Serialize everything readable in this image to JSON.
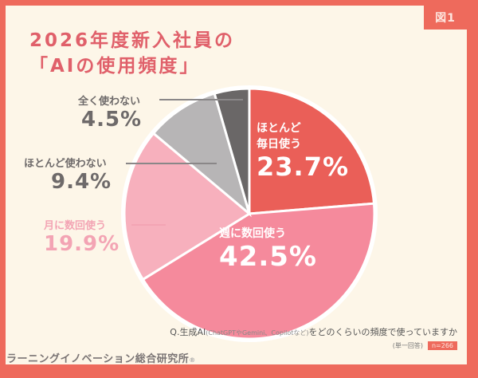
{
  "figure_badge": "図1",
  "title": {
    "line1": "2026年度新入社員の",
    "line2": "「AIの使用頻度」"
  },
  "question": {
    "prefix": "Q.生成AI",
    "note": "(ChatGPTやGemini、Copilotなど)",
    "suffix": "をどのくらいの頻度で使っていますか",
    "answer_type": "(単一回答)",
    "n": "n=266"
  },
  "footer": {
    "org": "ラーニングイノベーション総合研究所",
    "reg": "®"
  },
  "colors": {
    "frame": "#ee6a5c",
    "background": "#fdf6e8",
    "title": "#e0606a",
    "daily": "#ea5f58",
    "weekly": "#f58a9c",
    "monthly": "#f7b0bd",
    "rarely": "#b7b5b6",
    "never": "#6a6767"
  },
  "chart_data": {
    "type": "pie",
    "title": "2026年度新入社員の「AIの使用頻度」",
    "start_angle": "12 o'clock, clockwise",
    "categories": [
      "ほとんど毎日使う",
      "週に数回使う",
      "月に数回使う",
      "ほとんど使わない",
      "全く使わない"
    ],
    "values": [
      23.7,
      42.5,
      19.9,
      9.4,
      4.5
    ],
    "unit": "%",
    "n": 266
  },
  "labels": {
    "daily": {
      "name1": "ほとんど",
      "name2": "毎日使う",
      "pct": "23.7%"
    },
    "weekly": {
      "name": "週に数回使う",
      "pct": "42.5%"
    },
    "monthly": {
      "name": "月に数回使う",
      "pct": "19.9%"
    },
    "rarely": {
      "name": "ほとんど使わない",
      "pct": "9.4%"
    },
    "never": {
      "name": "全く使わない",
      "pct": "4.5%"
    }
  }
}
